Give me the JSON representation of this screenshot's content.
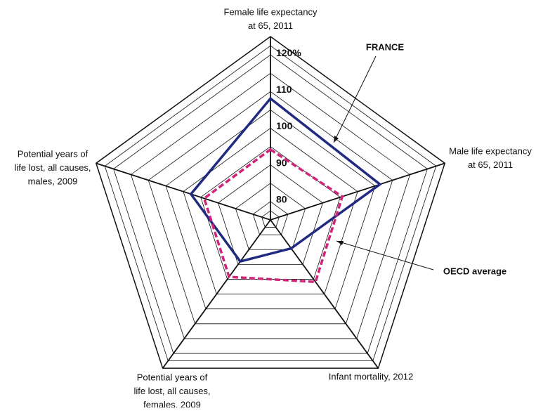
{
  "chart_data": {
    "type": "radar",
    "categories": [
      [
        "Female life expectancy",
        "at 65, 2011"
      ],
      [
        "Male life expectancy",
        "at 65, 2011"
      ],
      [
        "Infant mortality, 2012"
      ],
      [
        "Potential years of",
        "life lost, all causes,",
        "females, 2009"
      ],
      [
        "Potential years of",
        "life lost, all causes,",
        "males, 2009"
      ]
    ],
    "series": [
      {
        "name": "FRANCE",
        "color": "#1f2a80",
        "values": [
          108.1,
          106.4,
          84.6,
          89,
          97.8
        ]
      },
      {
        "name": "OECD average",
        "color": "#d0237a",
        "dashed": true,
        "values": [
          94.2,
          95.6,
          95.9,
          94.2,
          94
        ]
      }
    ],
    "ylim": [
      75,
      125
    ],
    "yticks": [
      80,
      90,
      100,
      110,
      {
        "value": 120,
        "label": "120%"
      }
    ],
    "grid": true
  }
}
